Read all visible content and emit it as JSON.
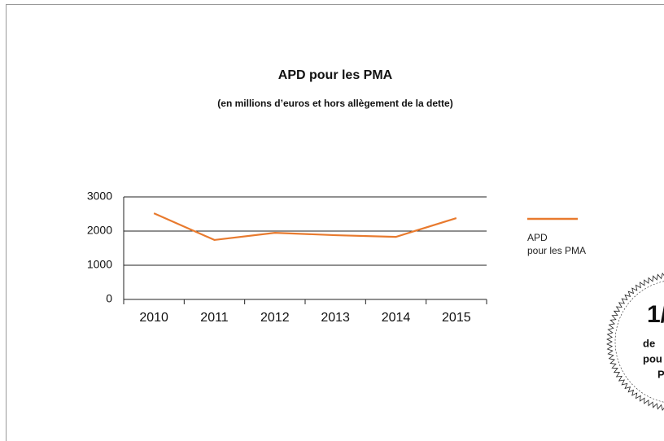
{
  "chart_data": {
    "type": "line",
    "title": "APD pour les PMA",
    "subtitle": "(en millions d’euros et hors allègement de la dette)",
    "categories": [
      "2010",
      "2011",
      "2012",
      "2013",
      "2014",
      "2015"
    ],
    "series": [
      {
        "name": "APD\npour les PMA",
        "color": "#e87a2e",
        "values": [
          2520,
          1740,
          1950,
          1880,
          1830,
          2380
        ]
      }
    ],
    "ylim": [
      0,
      3000
    ],
    "yticks": [
      0,
      1000,
      2000,
      3000
    ],
    "grid": true,
    "legend": "right"
  },
  "badge": {
    "lines": [
      "1/",
      "de",
      "pou",
      "P"
    ]
  }
}
